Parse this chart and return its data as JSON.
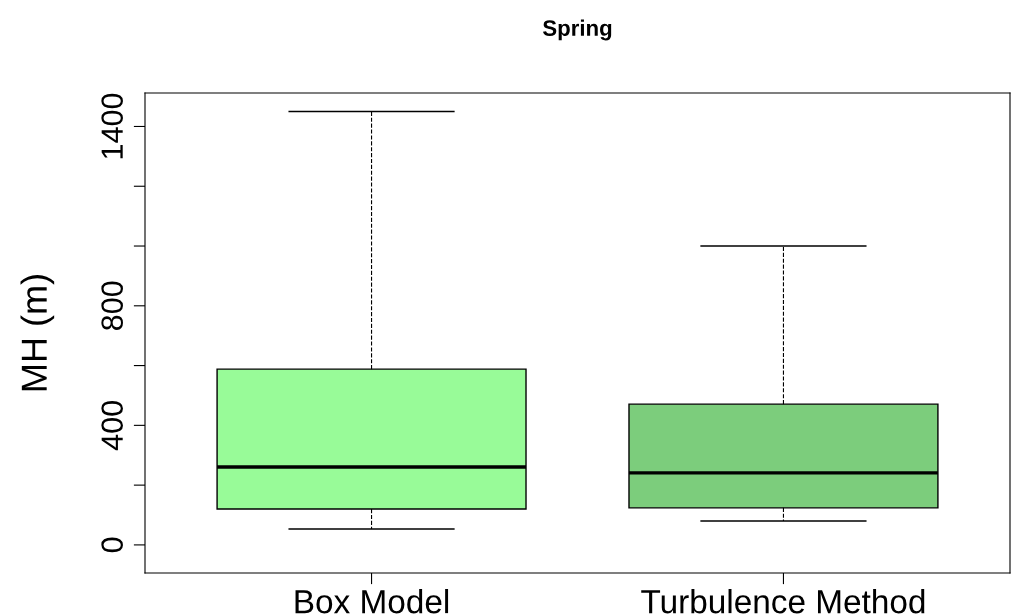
{
  "chart_data": {
    "type": "box",
    "title": "Spring",
    "ylabel": "MH (m)",
    "categories": [
      "Box Model",
      "Turbulence Method"
    ],
    "colors": [
      "#98fb98",
      "#7ccd7c"
    ],
    "boxes": [
      {
        "low": 53,
        "q1": 120,
        "median": 261,
        "q3": 588,
        "high": 1450
      },
      {
        "low": 80,
        "q1": 124,
        "median": 241,
        "q3": 471,
        "high": 1000
      }
    ],
    "ylim": [
      -94,
      1512
    ],
    "yticks": [
      0,
      {
        "value": 200,
        "label": null
      },
      400,
      {
        "value": 600,
        "label": null
      },
      800,
      {
        "value": 1000,
        "label": null
      },
      {
        "value": 1200,
        "label": null
      },
      1400
    ],
    "grid": false
  }
}
